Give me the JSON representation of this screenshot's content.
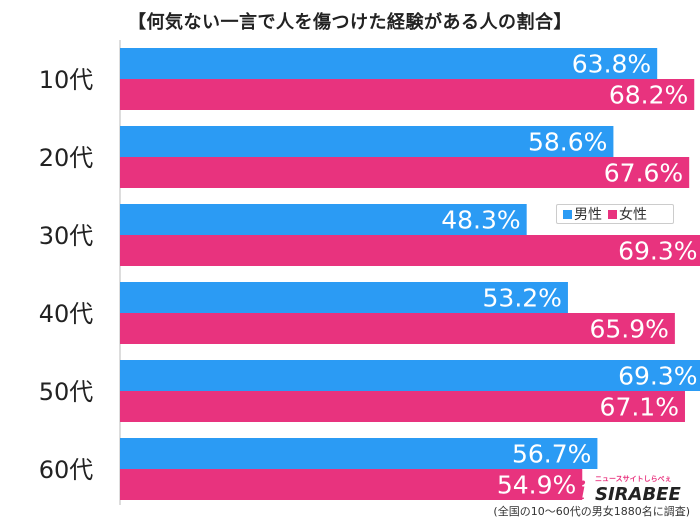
{
  "title": "【何気ない一言で人を傷つけた経験がある人の割合】",
  "legend": {
    "male": "男性",
    "female": "女性"
  },
  "colors": {
    "male": "#2b9bf4",
    "female": "#e8337e"
  },
  "logo": {
    "tagline": "ニュースサイトしらべぇ",
    "text": "SIRABEE"
  },
  "footnote": "(全国の10〜60代の男女1880名に調査)",
  "chart_data": {
    "type": "bar",
    "orientation": "horizontal",
    "categories": [
      "10代",
      "20代",
      "30代",
      "40代",
      "50代",
      "60代"
    ],
    "series": [
      {
        "name": "男性",
        "values": [
          63.8,
          58.6,
          48.3,
          53.2,
          69.3,
          56.7
        ]
      },
      {
        "name": "女性",
        "values": [
          68.2,
          67.6,
          69.3,
          65.9,
          67.1,
          54.9
        ]
      }
    ],
    "value_suffix": "%",
    "title": "【何気ない一言で人を傷つけた経験がある人の割合】",
    "xlim": [
      0,
      75
    ],
    "legend_position": "right"
  }
}
